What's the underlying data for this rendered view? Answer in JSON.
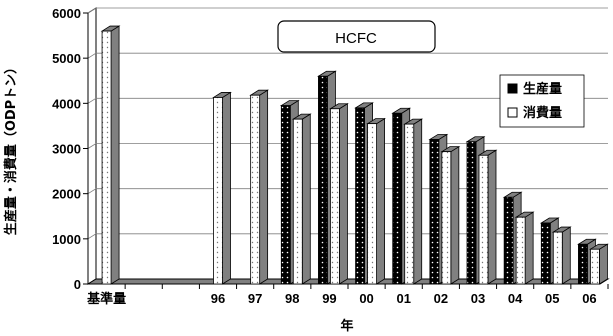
{
  "chart_data": {
    "type": "bar",
    "title": "HCFC",
    "xlabel": "年",
    "ylabel": "生産量・消費量（ODPトン）",
    "ylim": [
      0,
      6000
    ],
    "yticks": [
      "0",
      "1000",
      "2000",
      "3000",
      "4000",
      "5000",
      "6000"
    ],
    "grid": true,
    "legend_position": "right",
    "categories": [
      "基準量",
      "",
      "",
      "96",
      "97",
      "98",
      "99",
      "00",
      "01",
      "02",
      "03",
      "04",
      "05",
      "06"
    ],
    "series": [
      {
        "name": "生産量",
        "values": [
          null,
          null,
          null,
          null,
          null,
          3950,
          4600,
          3900,
          3780,
          3200,
          3150,
          1920,
          1350,
          880
        ]
      },
      {
        "name": "消費量",
        "values": [
          5600,
          null,
          null,
          4130,
          4180,
          3650,
          3880,
          3550,
          3540,
          2930,
          2850,
          1480,
          1150,
          770
        ]
      }
    ],
    "colors": {
      "production": "#000000",
      "consumption": "#ffffff",
      "depth": "#808080",
      "grid": "#808080",
      "floor": "#808080"
    }
  }
}
